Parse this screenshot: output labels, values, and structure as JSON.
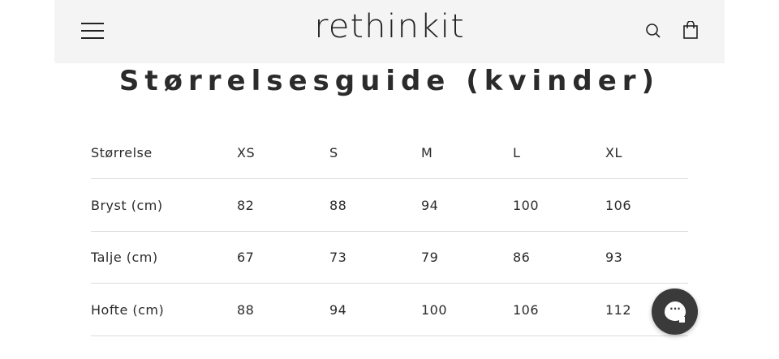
{
  "header": {
    "logo": "rethinkit",
    "icons": [
      "menu-icon",
      "search-icon",
      "shopping-bag-icon"
    ]
  },
  "title": "Størrelsesguide (kvinder)",
  "table": {
    "headers": [
      "Størrelse",
      "XS",
      "S",
      "M",
      "L",
      "XL"
    ],
    "rows": [
      [
        "Bryst (cm)",
        "82",
        "88",
        "94",
        "100",
        "106"
      ],
      [
        "Talje (cm)",
        "67",
        "73",
        "79",
        "86",
        "93"
      ],
      [
        "Hofte (cm)",
        "88",
        "94",
        "100",
        "106",
        "112"
      ]
    ]
  },
  "chat": {
    "icon": "chat-bubble-icon",
    "label": "···",
    "color": "#3a3a3a"
  }
}
